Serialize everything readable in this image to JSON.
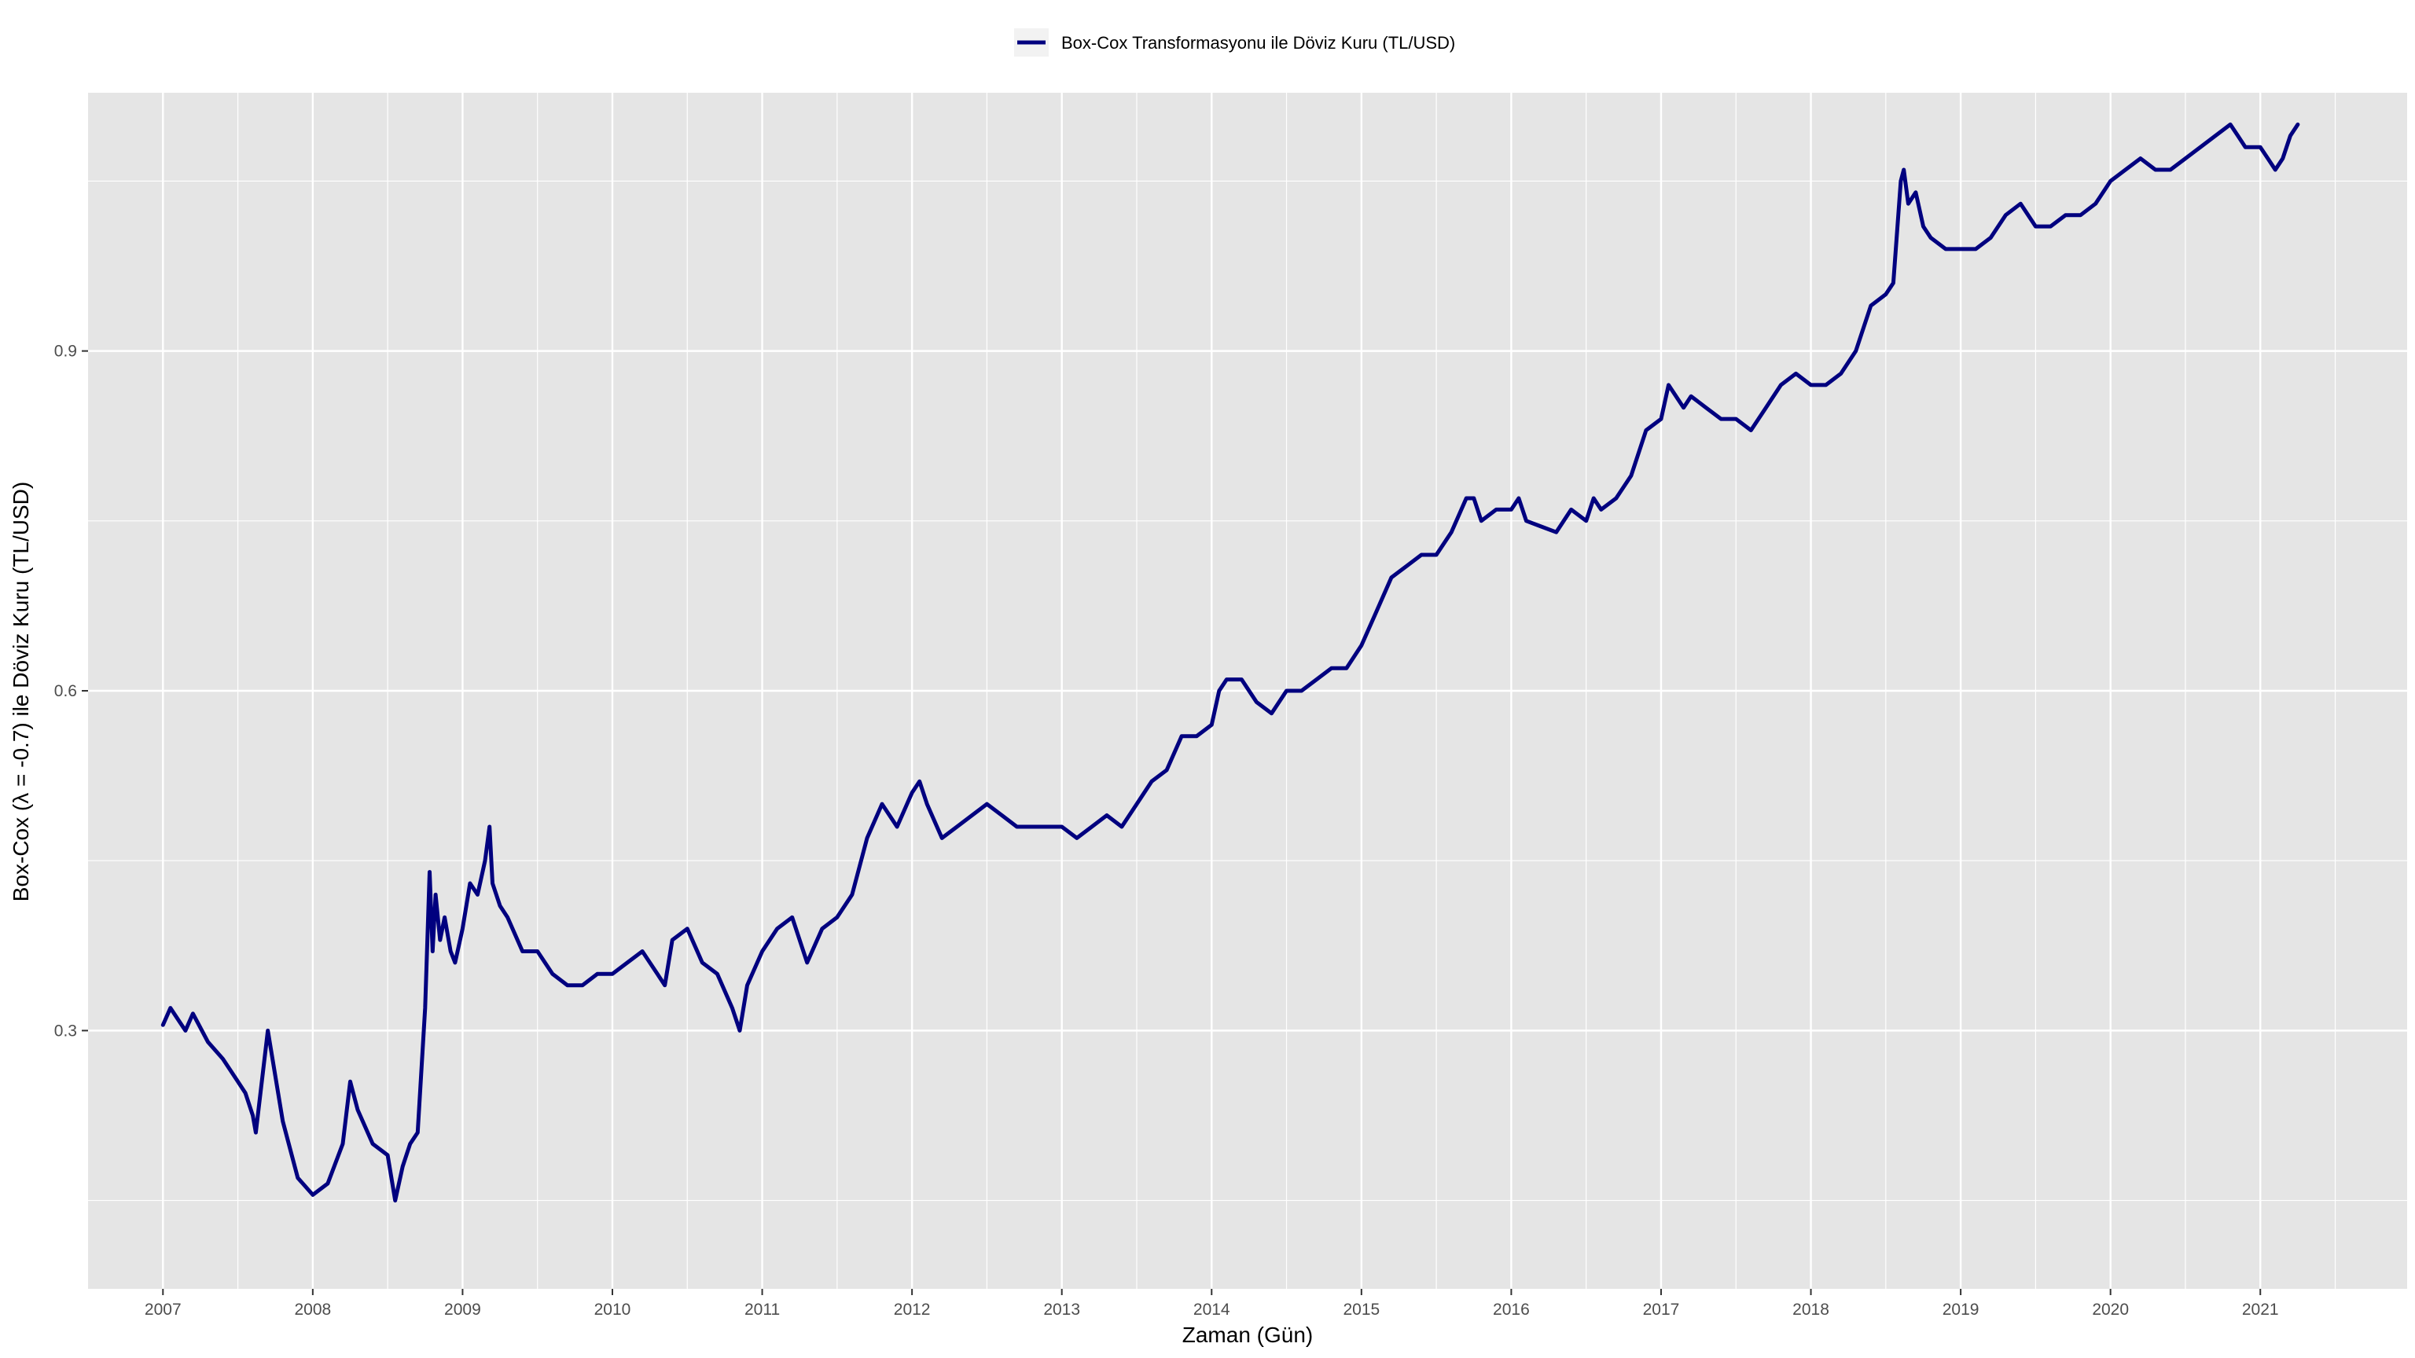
{
  "chart_data": {
    "type": "line",
    "title": "",
    "xlabel": "Zaman (Gün)",
    "ylabel": "Box-Cox (λ = -0.7) ile Döviz Kuru (TL/USD)",
    "legend": {
      "position": "top",
      "entries": [
        "Box-Cox Transformasyonu ile Döviz Kuru (TL/USD)"
      ]
    },
    "grid": true,
    "colors": {
      "panel": "#e5e5e5",
      "grid": "#ffffff",
      "line": "#00007f",
      "tick_text": "#4d4d4d"
    },
    "xlim": [
      2006.5,
      2021.98
    ],
    "ylim": [
      0.072,
      1.128
    ],
    "x_ticks": [
      2007,
      2008,
      2009,
      2010,
      2011,
      2012,
      2013,
      2014,
      2015,
      2016,
      2017,
      2018,
      2019,
      2020,
      2021
    ],
    "x_tick_labels": [
      "2007",
      "2008",
      "2009",
      "2010",
      "2011",
      "2012",
      "2013",
      "2014",
      "2015",
      "2016",
      "2017",
      "2018",
      "2019",
      "2020",
      "2021"
    ],
    "y_ticks": [
      0.3,
      0.6,
      0.9
    ],
    "y_tick_labels": [
      "0.3",
      "0.6",
      "0.9"
    ],
    "series": [
      {
        "name": "Box-Cox Transformasyonu ile Döviz Kuru (TL/USD)",
        "x": [
          2007.0,
          2007.05,
          2007.1,
          2007.15,
          2007.2,
          2007.3,
          2007.4,
          2007.5,
          2007.55,
          2007.6,
          2007.62,
          2007.7,
          2007.8,
          2007.9,
          2008.0,
          2008.1,
          2008.2,
          2008.25,
          2008.3,
          2008.4,
          2008.5,
          2008.55,
          2008.6,
          2008.65,
          2008.7,
          2008.75,
          2008.78,
          2008.8,
          2008.82,
          2008.85,
          2008.88,
          2008.92,
          2008.95,
          2009.0,
          2009.05,
          2009.1,
          2009.15,
          2009.18,
          2009.2,
          2009.25,
          2009.3,
          2009.4,
          2009.5,
          2009.6,
          2009.7,
          2009.8,
          2009.9,
          2010.0,
          2010.1,
          2010.2,
          2010.3,
          2010.35,
          2010.4,
          2010.5,
          2010.6,
          2010.7,
          2010.8,
          2010.85,
          2010.9,
          2011.0,
          2011.1,
          2011.2,
          2011.3,
          2011.4,
          2011.5,
          2011.6,
          2011.7,
          2011.8,
          2011.9,
          2012.0,
          2012.05,
          2012.1,
          2012.2,
          2012.3,
          2012.4,
          2012.5,
          2012.6,
          2012.7,
          2012.8,
          2012.9,
          2013.0,
          2013.1,
          2013.2,
          2013.3,
          2013.4,
          2013.5,
          2013.6,
          2013.7,
          2013.8,
          2013.9,
          2014.0,
          2014.05,
          2014.1,
          2014.2,
          2014.3,
          2014.4,
          2014.5,
          2014.6,
          2014.7,
          2014.8,
          2014.9,
          2015.0,
          2015.1,
          2015.2,
          2015.3,
          2015.4,
          2015.5,
          2015.6,
          2015.7,
          2015.75,
          2015.8,
          2015.9,
          2016.0,
          2016.05,
          2016.1,
          2016.2,
          2016.3,
          2016.4,
          2016.5,
          2016.55,
          2016.6,
          2016.7,
          2016.8,
          2016.9,
          2017.0,
          2017.05,
          2017.1,
          2017.15,
          2017.2,
          2017.3,
          2017.4,
          2017.5,
          2017.6,
          2017.7,
          2017.8,
          2017.9,
          2018.0,
          2018.1,
          2018.2,
          2018.3,
          2018.4,
          2018.5,
          2018.55,
          2018.6,
          2018.62,
          2018.65,
          2018.7,
          2018.75,
          2018.8,
          2018.9,
          2019.0,
          2019.1,
          2019.2,
          2019.3,
          2019.4,
          2019.45,
          2019.5,
          2019.6,
          2019.7,
          2019.8,
          2019.9,
          2020.0,
          2020.1,
          2020.2,
          2020.3,
          2020.4,
          2020.5,
          2020.6,
          2020.7,
          2020.8,
          2020.85,
          2020.9,
          2021.0,
          2021.05,
          2021.1,
          2021.15,
          2021.2,
          2021.25
        ],
        "y": [
          0.305,
          0.32,
          0.31,
          0.3,
          0.315,
          0.29,
          0.275,
          0.255,
          0.245,
          0.225,
          0.21,
          0.3,
          0.22,
          0.17,
          0.155,
          0.165,
          0.2,
          0.255,
          0.23,
          0.2,
          0.19,
          0.15,
          0.18,
          0.2,
          0.21,
          0.32,
          0.44,
          0.37,
          0.42,
          0.38,
          0.4,
          0.37,
          0.36,
          0.39,
          0.43,
          0.42,
          0.45,
          0.48,
          0.43,
          0.41,
          0.4,
          0.37,
          0.37,
          0.35,
          0.34,
          0.34,
          0.35,
          0.35,
          0.36,
          0.37,
          0.35,
          0.34,
          0.38,
          0.39,
          0.36,
          0.35,
          0.32,
          0.3,
          0.34,
          0.37,
          0.39,
          0.4,
          0.36,
          0.39,
          0.4,
          0.42,
          0.47,
          0.5,
          0.48,
          0.51,
          0.52,
          0.5,
          0.47,
          0.48,
          0.49,
          0.5,
          0.49,
          0.48,
          0.48,
          0.48,
          0.48,
          0.47,
          0.48,
          0.49,
          0.48,
          0.5,
          0.52,
          0.53,
          0.56,
          0.56,
          0.57,
          0.6,
          0.61,
          0.61,
          0.59,
          0.58,
          0.6,
          0.6,
          0.61,
          0.62,
          0.62,
          0.64,
          0.67,
          0.7,
          0.71,
          0.72,
          0.72,
          0.74,
          0.77,
          0.77,
          0.75,
          0.76,
          0.76,
          0.77,
          0.75,
          0.745,
          0.74,
          0.76,
          0.75,
          0.77,
          0.76,
          0.77,
          0.79,
          0.83,
          0.84,
          0.87,
          0.86,
          0.85,
          0.86,
          0.85,
          0.84,
          0.84,
          0.83,
          0.85,
          0.87,
          0.88,
          0.87,
          0.87,
          0.88,
          0.9,
          0.94,
          0.95,
          0.96,
          1.05,
          1.06,
          1.03,
          1.04,
          1.01,
          1.0,
          0.99,
          0.99,
          0.99,
          1.0,
          1.02,
          1.03,
          1.02,
          1.01,
          1.01,
          1.02,
          1.02,
          1.03,
          1.05,
          1.06,
          1.07,
          1.06,
          1.06,
          1.07,
          1.08,
          1.09,
          1.1,
          1.09,
          1.08,
          1.08,
          1.07,
          1.06,
          1.07,
          1.09,
          1.1
        ]
      }
    ]
  }
}
